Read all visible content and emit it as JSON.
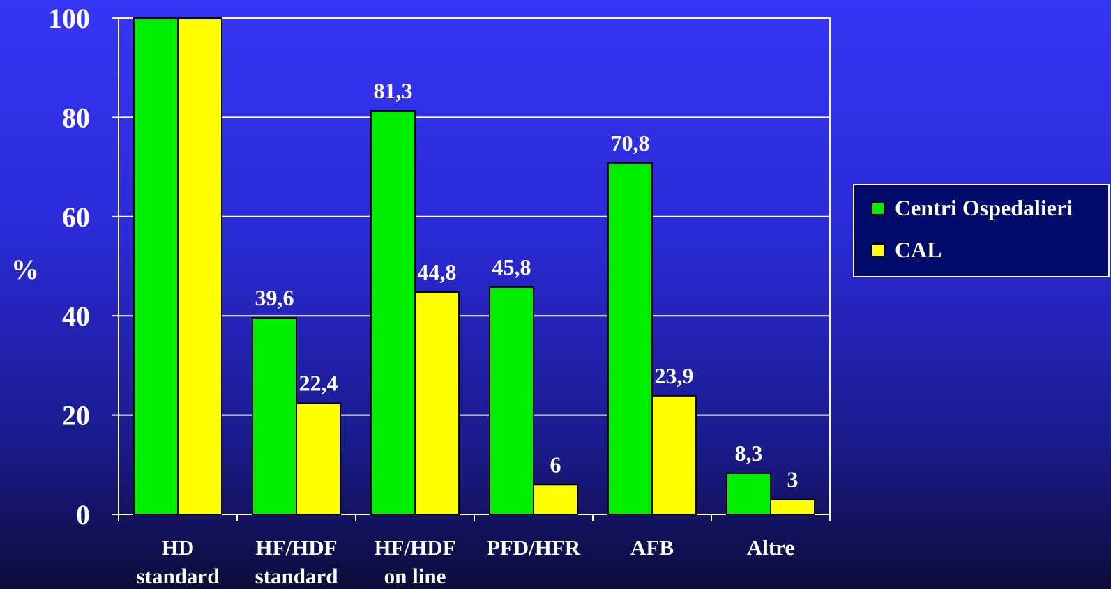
{
  "chart_data": {
    "type": "bar",
    "ylabel": "%",
    "ylim": [
      0,
      100
    ],
    "yticks": [
      0,
      20,
      40,
      60,
      80,
      100
    ],
    "grid": true,
    "legend_position": "right",
    "categories": [
      [
        "HD",
        "standard"
      ],
      [
        "HF/HDF",
        "standard"
      ],
      [
        "HF/HDF",
        "on line"
      ],
      [
        "PFD/HFR"
      ],
      [
        "AFB"
      ],
      [
        "Altre"
      ]
    ],
    "series": [
      {
        "name": "Centri Ospedalieri",
        "color": "#00ee00",
        "values": [
          100,
          39.6,
          81.3,
          45.8,
          70.8,
          8.3
        ],
        "data_labels": [
          "",
          "39,6",
          "81,3",
          "45,8",
          "70,8",
          "8,3"
        ]
      },
      {
        "name": "CAL",
        "color": "#ffff00",
        "values": [
          100,
          22.4,
          44.8,
          6,
          23.9,
          3
        ],
        "data_labels": [
          "",
          "22,4",
          "44,8",
          "6",
          "23,9",
          "3"
        ]
      }
    ]
  }
}
